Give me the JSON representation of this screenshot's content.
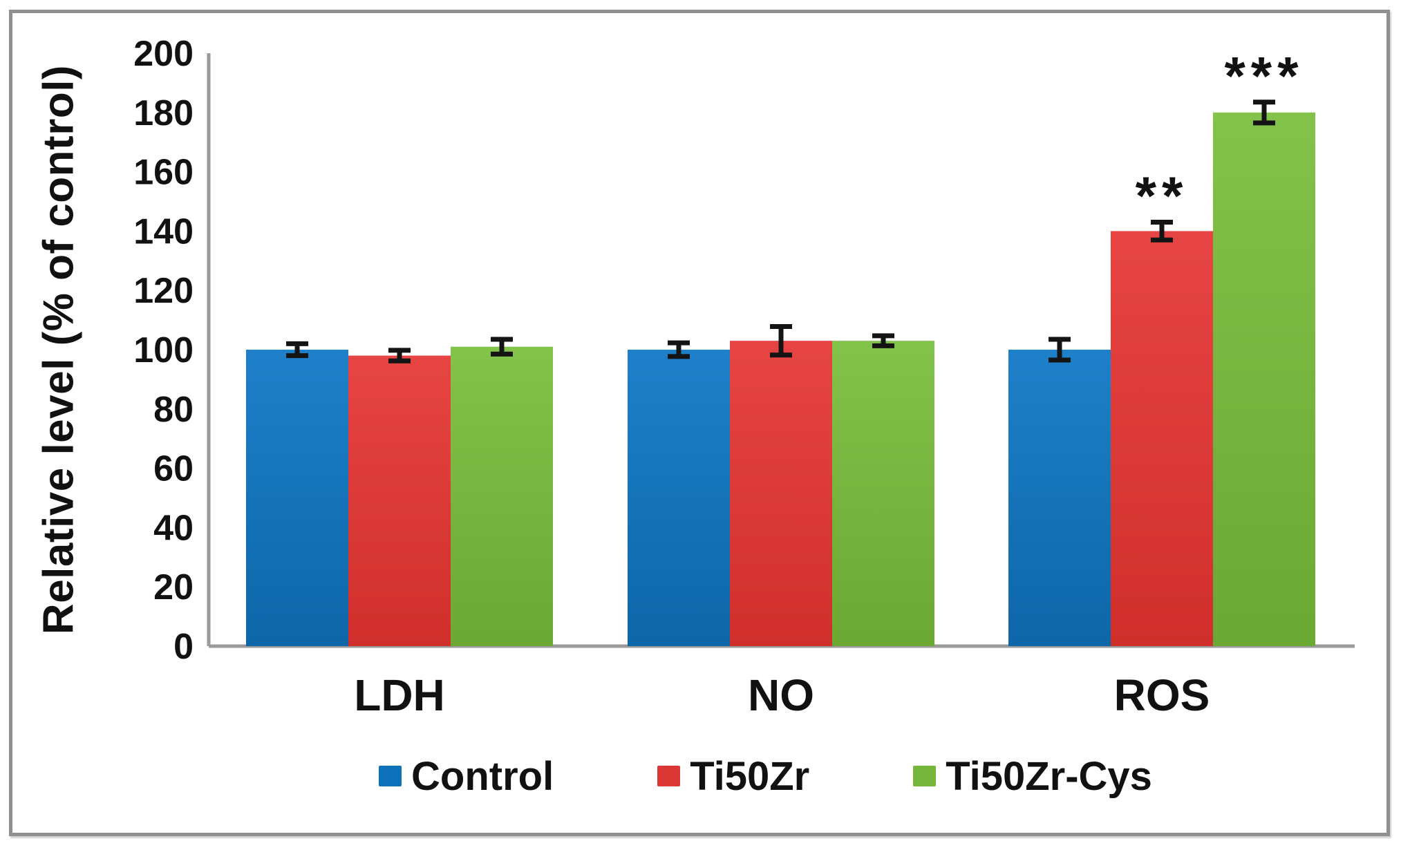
{
  "figure": {
    "background": "#ffffff",
    "border_color": "#8f8f8f"
  },
  "chart_data": {
    "type": "bar",
    "title": "",
    "xlabel": "",
    "ylabel": "Relative level (% of control)",
    "ylim": [
      0,
      200
    ],
    "yticks": [
      0,
      20,
      40,
      60,
      80,
      100,
      120,
      140,
      160,
      180,
      200
    ],
    "grid": false,
    "error_bars": true,
    "legend_position": "bottom",
    "axis_color": "#9a9a9a",
    "text_color": "#111111",
    "categories": [
      "LDH",
      "NO",
      "ROS"
    ],
    "series": [
      {
        "name": "Control",
        "color": "#0e72ba",
        "color_top": "#1e80c9",
        "color_bottom": "#0d66a8",
        "values": [
          100,
          100,
          100
        ],
        "errors": [
          2,
          2.3,
          3.5
        ]
      },
      {
        "name": "Ti50Zr",
        "color": "#db3734",
        "color_top": "#e64543",
        "color_bottom": "#d02f2c",
        "values": [
          98,
          103,
          140
        ],
        "errors": [
          1.8,
          4.8,
          3
        ]
      },
      {
        "name": "Ti50Zr-Cys",
        "color": "#77b63d",
        "color_top": "#83c24b",
        "color_bottom": "#6ca834",
        "values": [
          101,
          103,
          180
        ],
        "errors": [
          2.5,
          1.7,
          3.5
        ]
      }
    ],
    "annotations": [
      {
        "category": "ROS",
        "series": "Ti50Zr",
        "text": "**"
      },
      {
        "category": "ROS",
        "series": "Ti50Zr-Cys",
        "text": "***"
      }
    ]
  }
}
